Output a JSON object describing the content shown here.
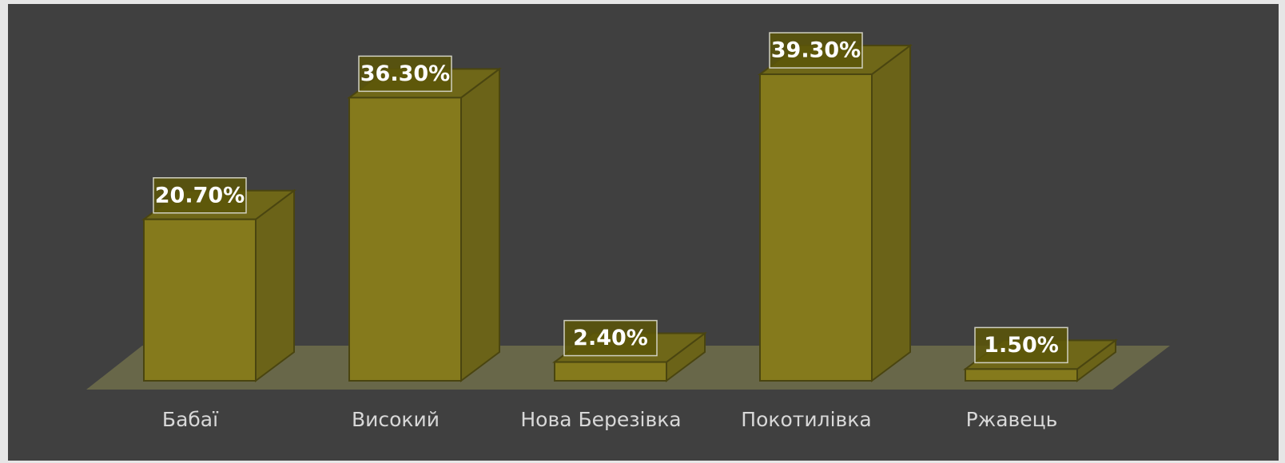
{
  "chart_data": {
    "type": "bar3d",
    "categories": [
      "Бабаї",
      "Високий",
      "Нова Березівка",
      "Покотилівка",
      "Ржавець"
    ],
    "values": [
      20.7,
      36.3,
      2.4,
      39.3,
      1.5
    ],
    "value_labels": [
      "20.70%",
      "36.30%",
      "2.40%",
      "39.30%",
      "1.50%"
    ],
    "color": "#857a1c"
  }
}
